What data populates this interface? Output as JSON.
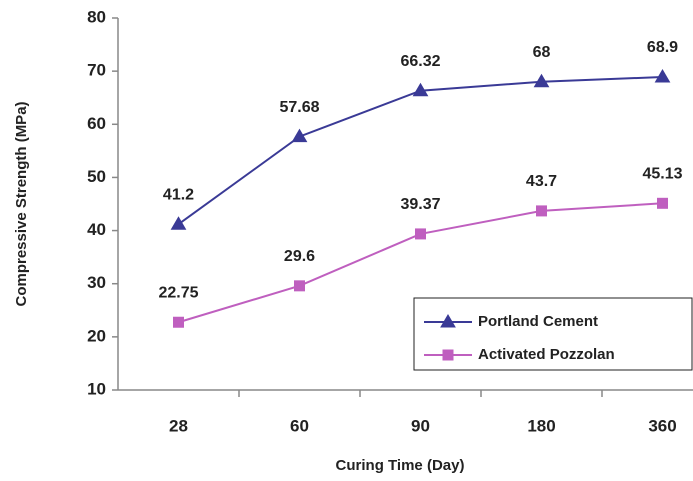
{
  "chart_data": {
    "type": "line",
    "x_label": "Curing Time (Day)",
    "y_label": "Compressive Strength (MPa)",
    "categories": [
      "28",
      "60",
      "90",
      "180",
      "360"
    ],
    "series": [
      {
        "name": "Portland Cement",
        "color": "#3a3a96",
        "marker": "triangle",
        "values": [
          41.2,
          57.68,
          66.32,
          68,
          68.9
        ]
      },
      {
        "name": "Activated Pozzolan",
        "color": "#bf5fbf",
        "marker": "square",
        "values": [
          22.75,
          29.6,
          39.37,
          43.7,
          45.13
        ]
      }
    ],
    "ylim": [
      10,
      80
    ],
    "yticks": [
      10,
      20,
      30,
      40,
      50,
      60,
      70,
      80
    ],
    "grid": false,
    "legend": "lower right",
    "data_labels": true
  }
}
